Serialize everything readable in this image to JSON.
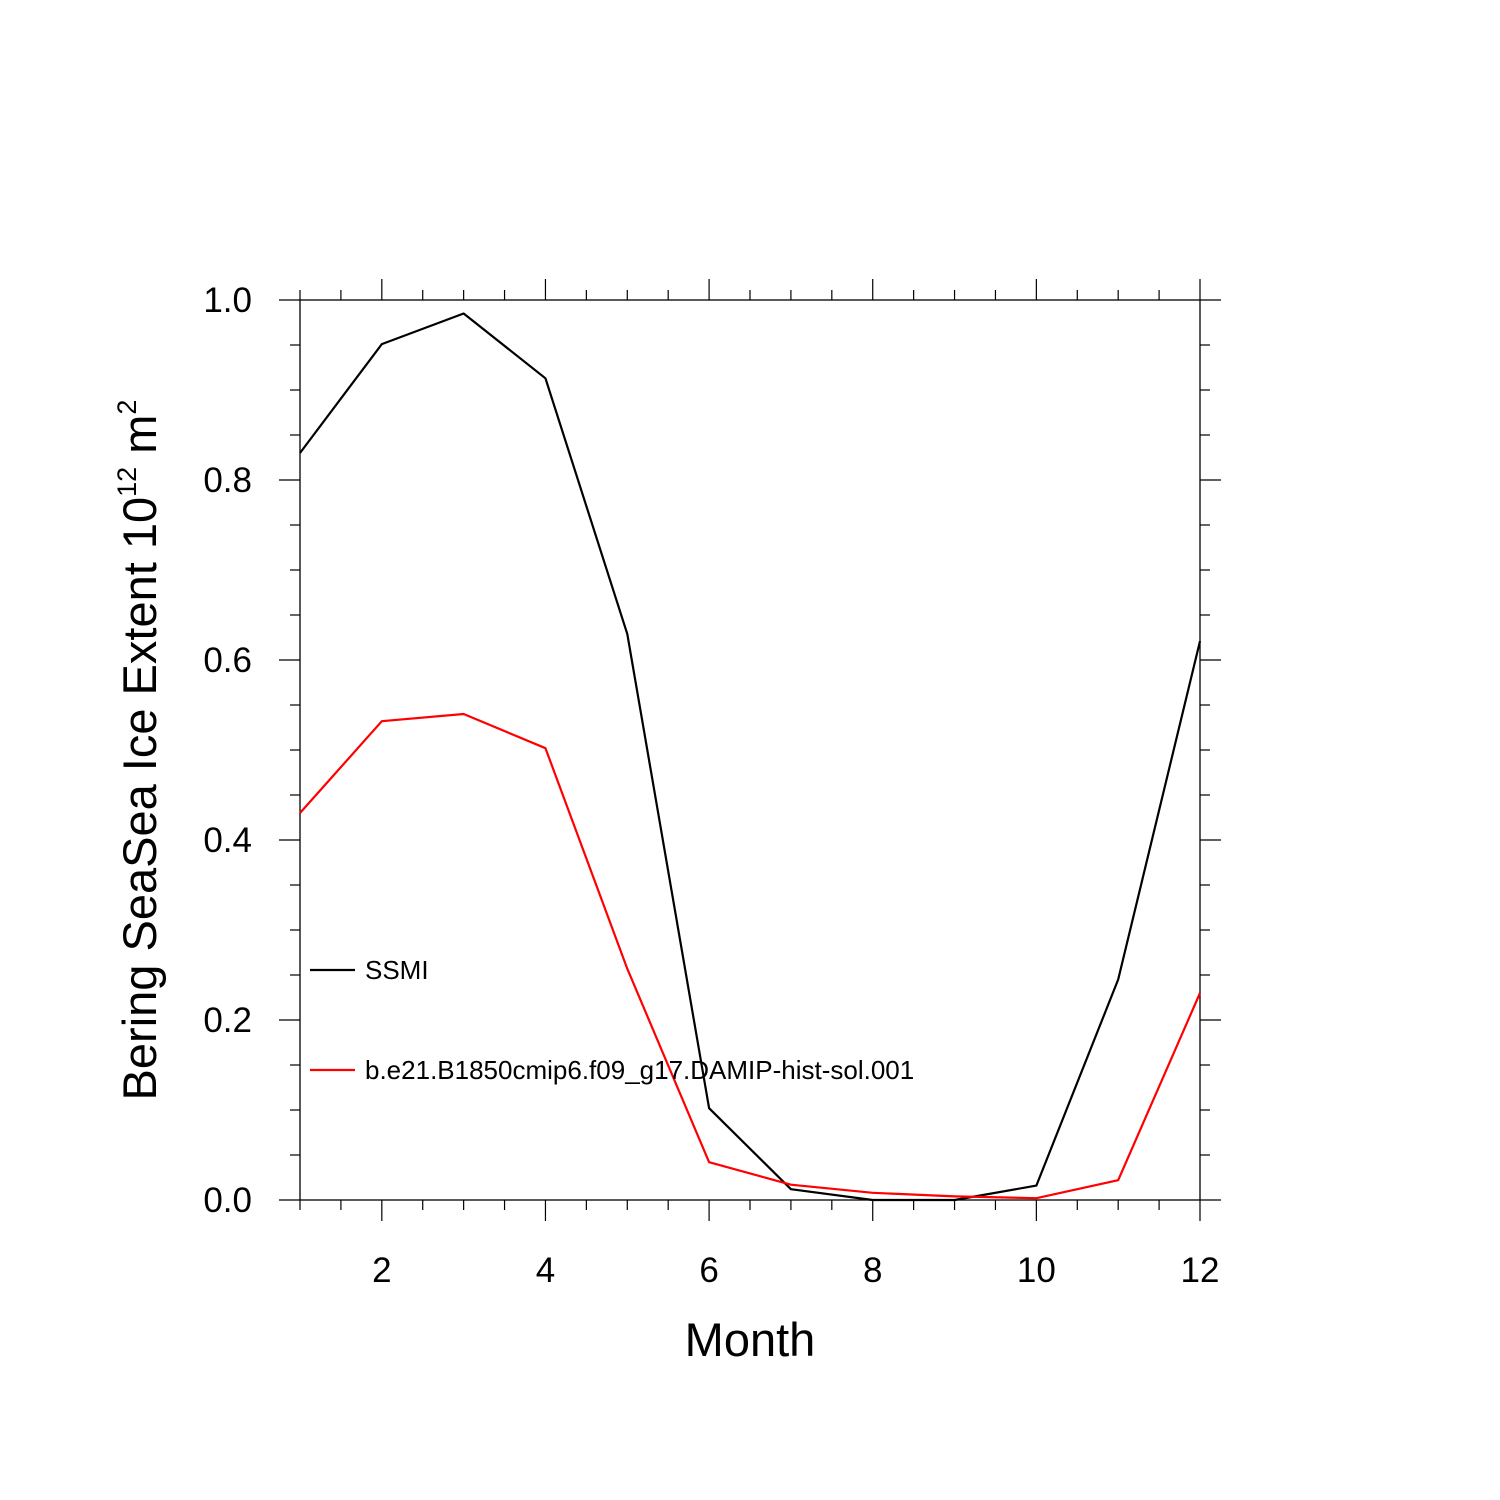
{
  "chart_data": {
    "type": "line",
    "xlabel": "Month",
    "ylabel": {
      "text": "Bering SeaSea Ice Extent 10",
      "exponent": "12",
      "unit": " m",
      "unit_exponent": "2"
    },
    "xlim": [
      1,
      12
    ],
    "ylim": [
      0.0,
      1.0
    ],
    "x_ticks": [
      2,
      4,
      6,
      8,
      10,
      12
    ],
    "x_tick_labels": [
      "2",
      "4",
      "6",
      "8",
      "10",
      "12"
    ],
    "y_ticks": [
      0.0,
      0.2,
      0.4,
      0.6,
      0.8,
      1.0
    ],
    "y_tick_labels": [
      "0.0",
      "0.2",
      "0.4",
      "0.6",
      "0.8",
      "1.0"
    ],
    "x": [
      1,
      2,
      3,
      4,
      5,
      6,
      7,
      8,
      9,
      10,
      11,
      12
    ],
    "series": [
      {
        "name": "SSMI",
        "color": "#000000",
        "values": [
          0.83,
          0.951,
          0.985,
          0.913,
          0.629,
          0.102,
          0.012,
          0.0,
          0.0,
          0.016,
          0.245,
          0.621
        ]
      },
      {
        "name": "b.e21.B1850cmip6.f09_g17.DAMIP-hist-sol.001",
        "color": "#ff0000",
        "values": [
          0.43,
          0.532,
          0.54,
          0.502,
          0.257,
          0.042,
          0.017,
          0.008,
          0.004,
          0.002,
          0.022,
          0.23
        ]
      }
    ],
    "legend_placement": "inside left",
    "grid": false
  }
}
